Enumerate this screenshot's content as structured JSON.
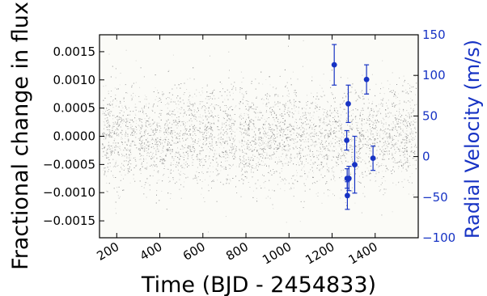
{
  "chart_data": {
    "type": "scatter",
    "xlabel": "Time (BJD - 2454833)",
    "ylabel_left": "Fractional change in flux",
    "ylabel_right": "Radial Velocity (m/s)",
    "xlim": [
      120,
      1600
    ],
    "ylim_left": [
      -0.0018,
      0.0018
    ],
    "ylim_right": [
      -100,
      150
    ],
    "x_ticks": [
      200,
      400,
      600,
      800,
      1000,
      1200,
      1400
    ],
    "x_tick_labels": [
      "200",
      "400",
      "600",
      "800",
      "1000",
      "1200",
      "1400"
    ],
    "y_left_ticks": [
      0.0015,
      0.001,
      0.0005,
      0.0,
      -0.0005,
      -0.001,
      -0.0015
    ],
    "y_left_tick_labels": [
      "0.0015",
      "0.0010",
      "0.0005",
      "0.0000",
      "−0.0005",
      "−0.0010",
      "−0.0015"
    ],
    "y_right_ticks": [
      150,
      100,
      50,
      0,
      -50,
      -100
    ],
    "y_right_tick_labels": [
      "150",
      "100",
      "50",
      "0",
      "−50",
      "−100"
    ],
    "grid": false,
    "series": [
      {
        "kind": "photometry",
        "axis": "left",
        "color": "#888888",
        "x_range": [
          130,
          1590
        ],
        "typical_scatter": 0.00045,
        "gaps_x": [
          295,
          760,
          1300
        ]
      },
      {
        "kind": "radial_velocity",
        "axis": "right",
        "color": "#1733c4",
        "points": [
          {
            "x": 1210,
            "y": 113,
            "err": 25
          },
          {
            "x": 1268,
            "y": 20,
            "err": 12
          },
          {
            "x": 1270,
            "y": -27,
            "err": 12
          },
          {
            "x": 1271,
            "y": -48,
            "err": 17
          },
          {
            "x": 1275,
            "y": 65,
            "err": 23
          },
          {
            "x": 1278,
            "y": -27,
            "err": 15
          },
          {
            "x": 1305,
            "y": -10,
            "err": 35
          },
          {
            "x": 1360,
            "y": 95,
            "err": 18
          },
          {
            "x": 1390,
            "y": -2,
            "err": 15
          }
        ]
      }
    ]
  }
}
